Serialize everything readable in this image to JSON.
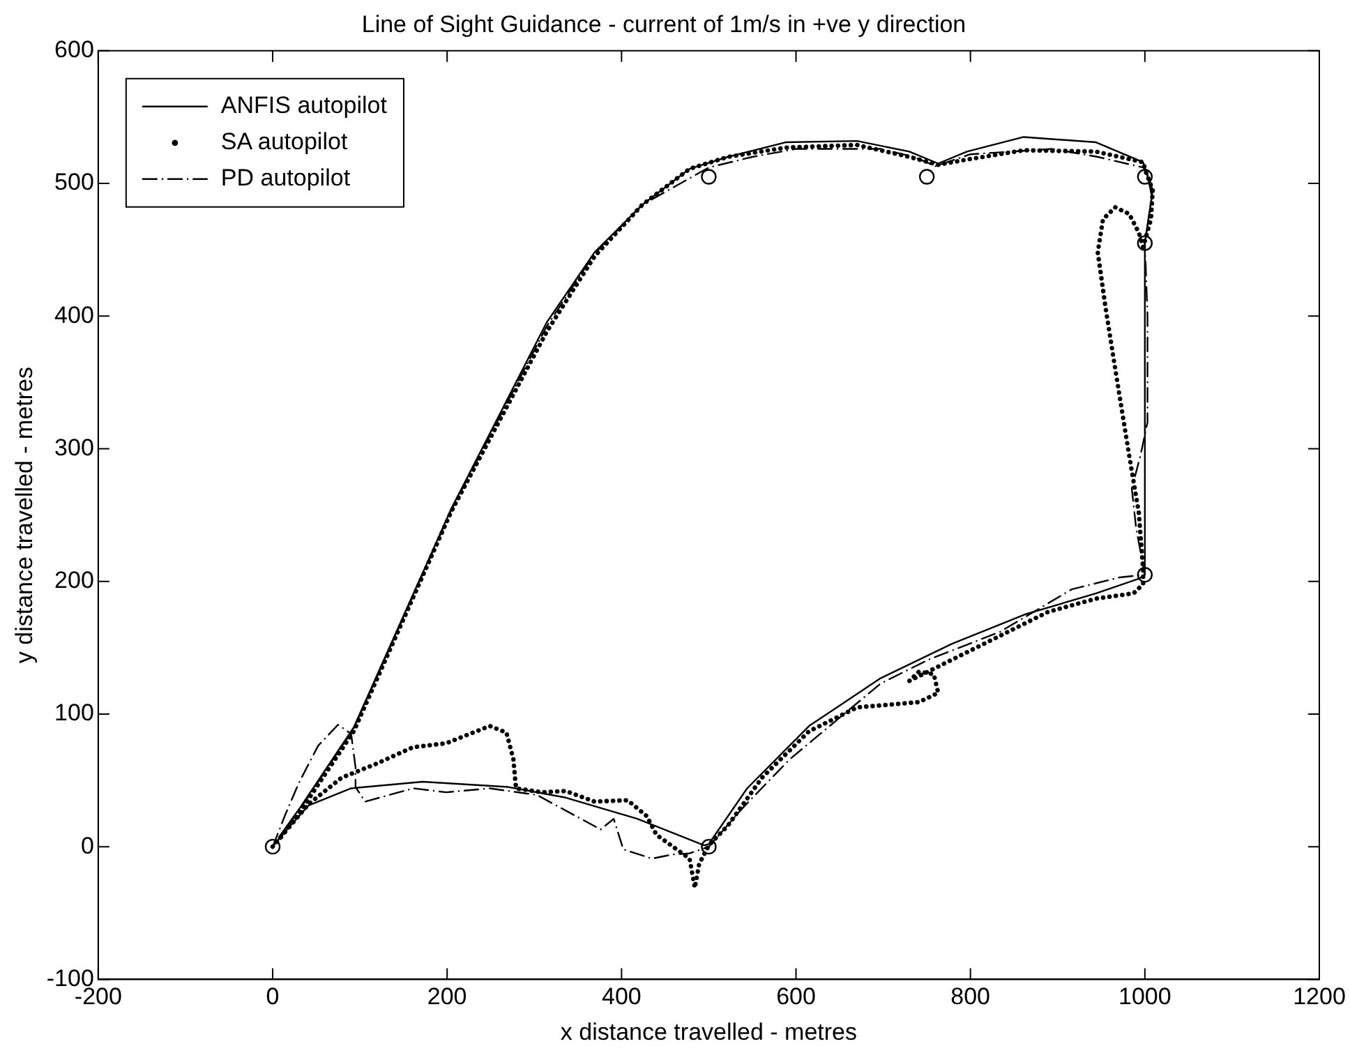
{
  "chart_data": {
    "type": "line",
    "title": "Line of Sight Guidance - current of 1m/s in +ve y direction",
    "xlabel": "x distance travelled - metres",
    "ylabel": "y distance travelled - metres",
    "xlim": [
      -200,
      1200
    ],
    "xticks": [
      -200,
      0,
      200,
      400,
      600,
      800,
      1000,
      1200
    ],
    "ylim": [
      -100,
      600
    ],
    "yticks": [
      -100,
      0,
      100,
      200,
      300,
      400,
      500,
      600
    ],
    "grid": false,
    "legend": "top left",
    "series": [
      {
        "name": "ANFIS autopilot",
        "color": "#000000",
        "line_style": "solid",
        "marker": "none",
        "x": [
          0,
          15,
          41,
          90,
          172,
          270,
          336,
          418,
          495,
          500,
          544,
          615,
          697,
          779,
          862,
          944,
          993,
          1000,
          1000,
          1009,
          1001,
          998,
          944,
          861,
          796,
          763,
          730,
          670,
          588,
          522,
          478,
          424,
          369,
          314,
          205,
          93,
          32,
          7
        ],
        "values": [
          0,
          12,
          31,
          44,
          49,
          45,
          37,
          21,
          1,
          2,
          44,
          91,
          127,
          153,
          175,
          191,
          202,
          205,
          455,
          495,
          509,
          516,
          531,
          535,
          524,
          515,
          524,
          532,
          531,
          520,
          511,
          484,
          448,
          395,
          255,
          90,
          30,
          7
        ]
      },
      {
        "name": "SA autopilot",
        "color": "#000000",
        "line_style": "dotted",
        "marker": "none",
        "x": [
          0,
          41,
          79,
          117,
          161,
          199,
          249,
          268,
          276,
          279,
          309,
          336,
          369,
          407,
          429,
          440,
          478,
          484,
          489,
          500,
          522,
          561,
          615,
          670,
          741,
          763,
          758,
          741,
          730,
          779,
          834,
          889,
          944,
          987,
          998,
          998,
          993,
          982,
          968,
          955,
          946,
          952,
          966,
          982,
          993,
          998,
          1007,
          1009,
          1001,
          998,
          944,
          861,
          796,
          763,
          730,
          670,
          588,
          522,
          478,
          424,
          369,
          314,
          205,
          93,
          32,
          7
        ],
        "values": [
          0,
          32,
          52,
          62,
          75,
          78,
          91,
          86,
          66,
          44,
          41,
          42,
          34,
          35,
          23,
          9,
          -9,
          -31,
          -13,
          1,
          16,
          52,
          87,
          105,
          109,
          116,
          130,
          132,
          125,
          141,
          159,
          177,
          187,
          191,
          198,
          209,
          252,
          295,
          352,
          406,
          448,
          473,
          482,
          477,
          463,
          452,
          473,
          495,
          509,
          516,
          524,
          525,
          518,
          514,
          520,
          529,
          527,
          520,
          511,
          484,
          445,
          388,
          253,
          87,
          27,
          5
        ]
      },
      {
        "name": "PD autopilot",
        "color": "#000000",
        "line_style": "dashdot",
        "marker": "none",
        "x": [
          0,
          15,
          30,
          52,
          75,
          90,
          95,
          95,
          106,
          161,
          199,
          249,
          303,
          376,
          391,
          402,
          435,
          457,
          478,
          500,
          540,
          593,
          697,
          752,
          834,
          916,
          971,
          1000,
          990,
          985,
          995,
          1003,
          1003,
          1000,
          1008,
          1002,
          998,
          946,
          894,
          800,
          760,
          735,
          697,
          600,
          550,
          500,
          424,
          369,
          314,
          205,
          93,
          32,
          7
        ],
        "values": [
          0,
          25,
          48,
          76,
          92,
          85,
          60,
          45,
          34,
          44,
          41,
          44,
          39,
          13,
          21,
          -2,
          -9,
          -6,
          -5,
          0,
          30,
          66,
          123,
          141,
          162,
          194,
          203,
          205,
          240,
          270,
          295,
          320,
          400,
          455,
          490,
          510,
          512,
          520,
          526,
          522,
          513,
          520,
          526,
          526,
          520,
          512,
          484,
          447,
          392,
          254,
          89,
          29,
          6
        ]
      },
      {
        "type": "scatter",
        "color": "#000000",
        "marker": "circle",
        "x": [
          0,
          500,
          1000,
          1000,
          1000,
          750,
          500
        ],
        "values": [
          0,
          0,
          205,
          455,
          505,
          505,
          505
        ]
      }
    ]
  }
}
